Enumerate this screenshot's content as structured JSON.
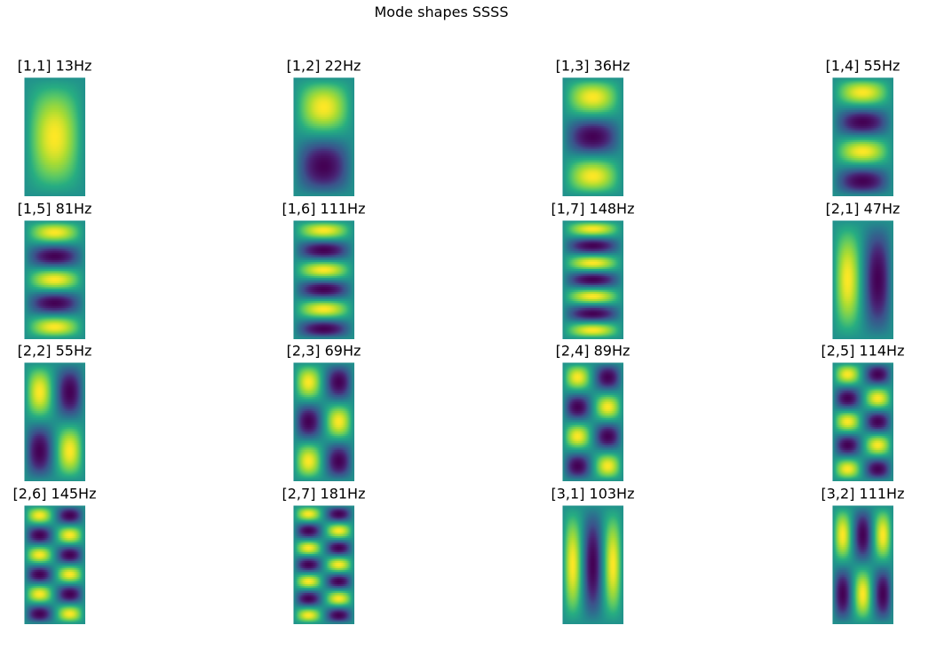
{
  "figure": {
    "title": "Mode shapes SSSS"
  },
  "chart_data": {
    "type": "heatmap",
    "title": "Mode shapes SSSS",
    "colormap": "viridis",
    "colors": {
      "low": "#440154",
      "mid": "#21918c",
      "high": "#fde725"
    },
    "grid": false,
    "axes": "off",
    "layout": {
      "rows": 4,
      "cols": 4
    },
    "panels": [
      {
        "title": "[1,1]  13Hz",
        "m": 1,
        "n": 1,
        "freq": 13
      },
      {
        "title": "[1,2]  22Hz",
        "m": 1,
        "n": 2,
        "freq": 22
      },
      {
        "title": "[1,3]  36Hz",
        "m": 1,
        "n": 3,
        "freq": 36
      },
      {
        "title": "[1,4]  55Hz",
        "m": 1,
        "n": 4,
        "freq": 55
      },
      {
        "title": "[1,5]  81Hz",
        "m": 1,
        "n": 5,
        "freq": 81
      },
      {
        "title": "[1,6]  111Hz",
        "m": 1,
        "n": 6,
        "freq": 111
      },
      {
        "title": "[1,7]  148Hz",
        "m": 1,
        "n": 7,
        "freq": 148
      },
      {
        "title": "[2,1]  47Hz",
        "m": 2,
        "n": 1,
        "freq": 47
      },
      {
        "title": "[2,2]  55Hz",
        "m": 2,
        "n": 2,
        "freq": 55
      },
      {
        "title": "[2,3]  69Hz",
        "m": 2,
        "n": 3,
        "freq": 69
      },
      {
        "title": "[2,4]  89Hz",
        "m": 2,
        "n": 4,
        "freq": 89
      },
      {
        "title": "[2,5]  114Hz",
        "m": 2,
        "n": 5,
        "freq": 114
      },
      {
        "title": "[2,6]  145Hz",
        "m": 2,
        "n": 6,
        "freq": 145
      },
      {
        "title": "[2,7]  181Hz",
        "m": 2,
        "n": 7,
        "freq": 181
      },
      {
        "title": "[3,1]  103Hz",
        "m": 3,
        "n": 1,
        "freq": 103
      },
      {
        "title": "[3,2]  111Hz",
        "m": 3,
        "n": 2,
        "freq": 111
      }
    ]
  }
}
